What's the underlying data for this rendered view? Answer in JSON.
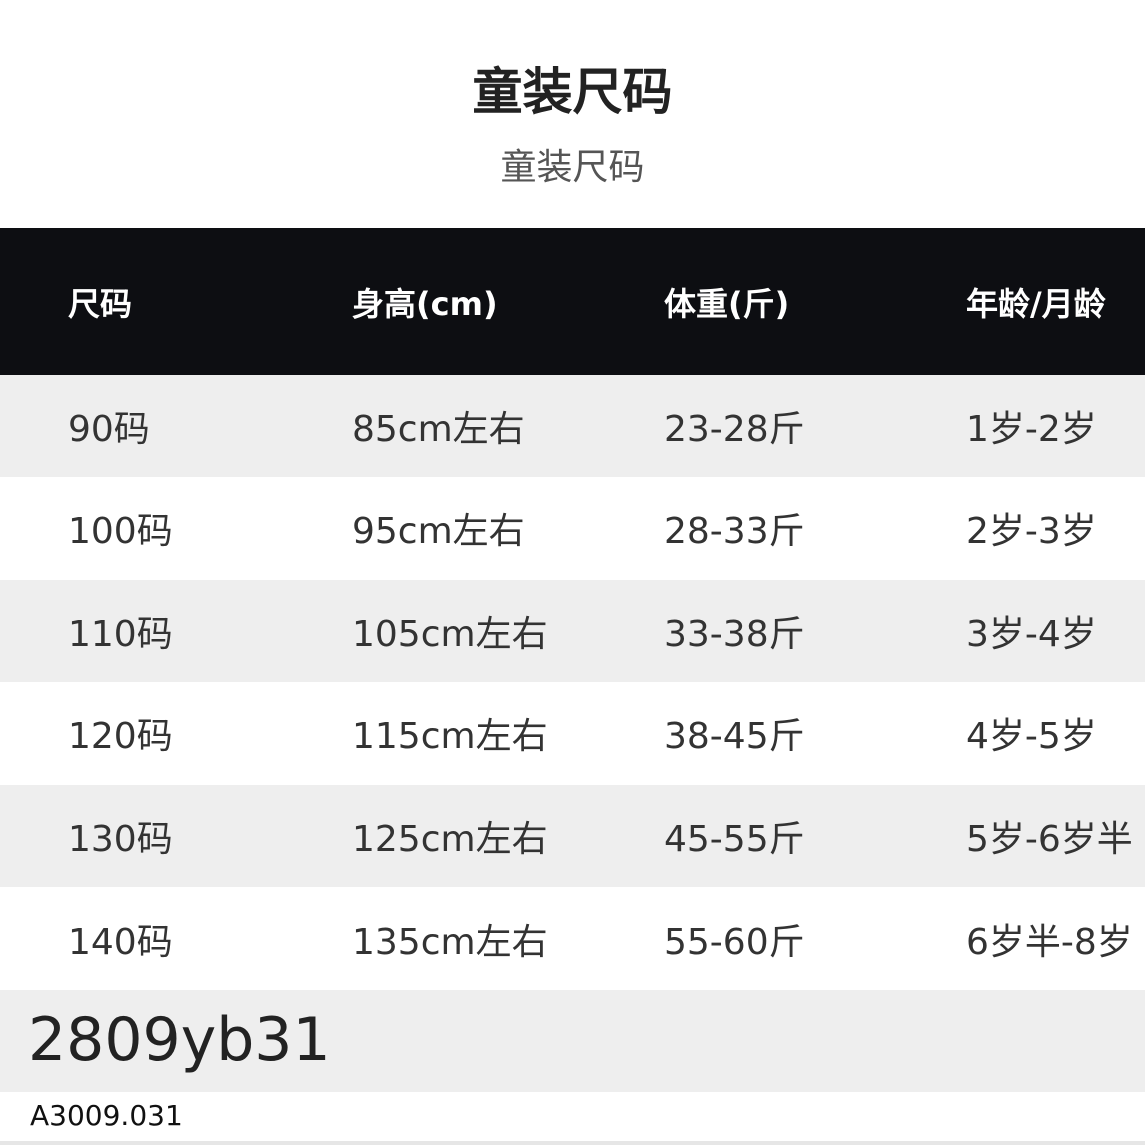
{
  "title": "童装尺码",
  "subtitle": "童装尺码",
  "headers": [
    "尺码",
    "身高(cm)",
    "体重(斤)",
    "年龄/月龄"
  ],
  "rows": [
    [
      "90码",
      "85cm左右",
      "23-28斤",
      "1岁-2岁"
    ],
    [
      "100码",
      "95cm左右",
      "28-33斤",
      "2岁-3岁"
    ],
    [
      "110码",
      "105cm左右",
      "33-38斤",
      "3岁-4岁"
    ],
    [
      "120码",
      "115cm左右",
      "38-45斤",
      "4岁-5岁"
    ],
    [
      "130码",
      "125cm左右",
      "45-55斤",
      "5岁-6岁半"
    ],
    [
      "140码",
      "135cm左右",
      "55-60斤",
      "6岁半-8岁"
    ]
  ],
  "code_back": "2809yb31",
  "code_front": "A3009.031"
}
